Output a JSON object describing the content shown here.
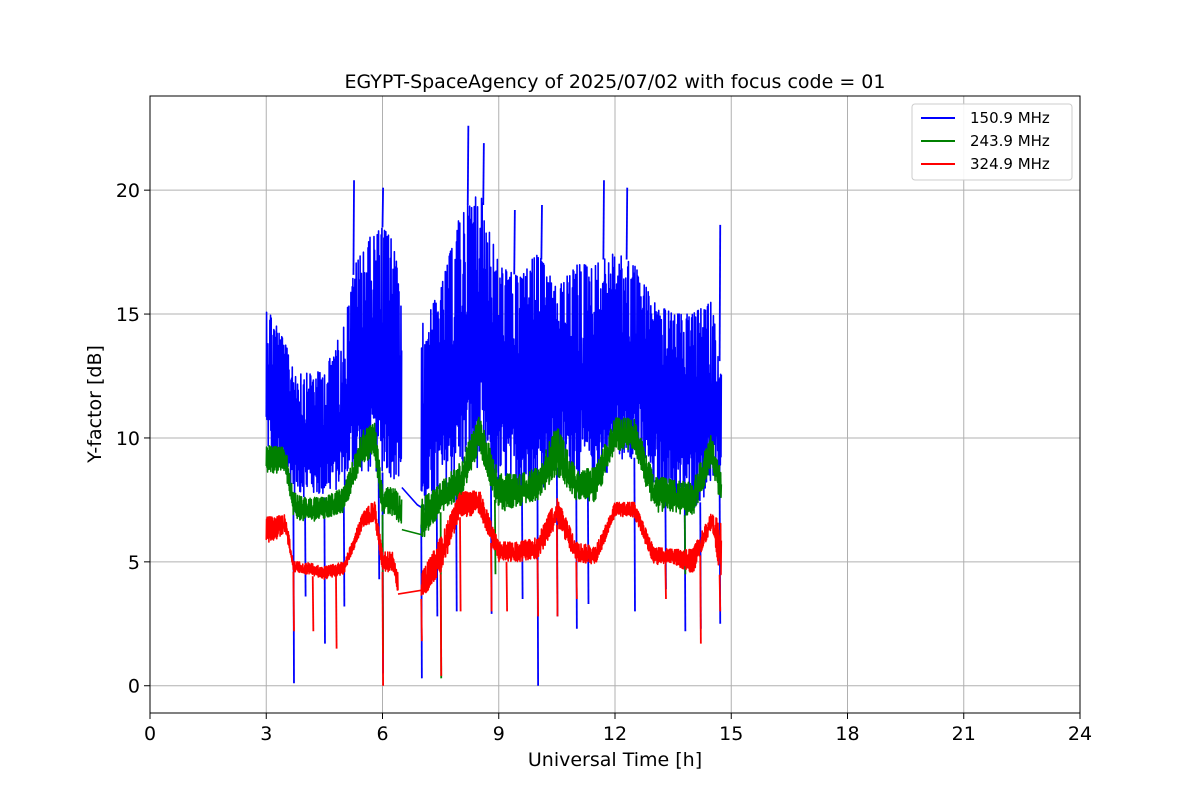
{
  "chart_data": {
    "type": "line",
    "title": "EGYPT-SpaceAgency of 2025/07/02 with focus code = 01",
    "xlabel": "Universal Time [h]",
    "ylabel": "Y-factor [dB]",
    "xlim": [
      0,
      24
    ],
    "ylim": [
      -1.1,
      23.8
    ],
    "xticks": [
      0,
      3,
      6,
      9,
      12,
      15,
      18,
      21,
      24
    ],
    "yticks": [
      0,
      5,
      10,
      15,
      20
    ],
    "grid": true,
    "legend_position": "top-right",
    "series": [
      {
        "name": "150.9 MHz",
        "color": "#0000ff",
        "segments": [
          {
            "x": [
              3.0,
              3.3,
              3.7,
              4.0,
              4.5,
              5.0,
              5.3,
              5.6,
              6.0,
              6.3,
              6.5
            ],
            "y_low": [
              9.5,
              8.5,
              7.8,
              7.6,
              7.6,
              8.0,
              8.6,
              8.5,
              8.6,
              8.3,
              8.3
            ],
            "y_high": [
              15.4,
              14.5,
              13.0,
              12.6,
              12.7,
              14.5,
              17.0,
              18.0,
              18.5,
              18.0,
              15.0
            ]
          },
          {
            "x": [
              7.0,
              7.5,
              8.0,
              8.5,
              9.0,
              9.5,
              10.0,
              10.5,
              11.0,
              11.5,
              12.0,
              12.5,
              13.0,
              13.5,
              14.0,
              14.5,
              14.75
            ],
            "y_low": [
              6.5,
              7.5,
              8.6,
              8.8,
              7.8,
              7.6,
              7.6,
              8.8,
              8.2,
              8.0,
              9.0,
              9.2,
              7.8,
              7.5,
              7.0,
              8.0,
              8.2
            ],
            "y_high": [
              14.5,
              16.0,
              19.0,
              20.0,
              17.0,
              16.5,
              17.5,
              16.0,
              17.0,
              17.0,
              17.5,
              17.0,
              15.5,
              15.0,
              15.0,
              15.5,
              12.5
            ]
          }
        ],
        "spikes": [
          [
            3.7,
            0.1
          ],
          [
            4.0,
            3.6
          ],
          [
            4.5,
            1.7
          ],
          [
            5.0,
            3.2
          ],
          [
            5.9,
            4.3
          ],
          [
            6.0,
            0.5
          ],
          [
            7.0,
            0.3
          ],
          [
            7.4,
            2.8
          ],
          [
            7.9,
            3.0
          ],
          [
            8.8,
            2.9
          ],
          [
            9.6,
            3.5
          ],
          [
            10.0,
            0.0
          ],
          [
            10.5,
            2.8
          ],
          [
            11.0,
            2.3
          ],
          [
            11.3,
            3.3
          ],
          [
            12.5,
            3.0
          ],
          [
            13.3,
            3.9
          ],
          [
            13.8,
            2.2
          ],
          [
            14.2,
            2.3
          ],
          [
            14.7,
            2.5
          ],
          [
            8.2,
            22.6
          ],
          [
            8.6,
            21.9
          ],
          [
            5.25,
            20.4
          ],
          [
            6.0,
            20.1
          ],
          [
            11.7,
            20.4
          ],
          [
            12.3,
            20.1
          ],
          [
            9.4,
            19.2
          ],
          [
            10.1,
            19.4
          ],
          [
            14.7,
            18.6
          ]
        ],
        "bridge": [
          [
            6.5,
            8.0
          ],
          [
            6.9,
            7.3
          ],
          [
            7.1,
            7.1
          ]
        ]
      },
      {
        "name": "243.9 MHz",
        "color": "#008000",
        "segments": [
          {
            "x": [
              3.0,
              3.5,
              3.7,
              4.0,
              4.5,
              5.0,
              5.5,
              5.8,
              6.0,
              6.3,
              6.5
            ],
            "y_low": [
              8.6,
              8.5,
              6.8,
              6.6,
              6.7,
              7.0,
              9.0,
              9.2,
              6.9,
              6.8,
              6.4
            ],
            "y_high": [
              9.7,
              9.6,
              7.8,
              7.6,
              7.6,
              8.0,
              10.3,
              10.6,
              8.0,
              8.0,
              7.5
            ]
          },
          {
            "x": [
              7.0,
              7.5,
              8.0,
              8.5,
              9.0,
              9.5,
              10.0,
              10.5,
              11.0,
              11.5,
              12.0,
              12.5,
              13.0,
              13.5,
              14.0,
              14.5,
              14.75
            ],
            "y_low": [
              5.8,
              7.0,
              7.5,
              9.5,
              7.0,
              7.2,
              7.5,
              8.5,
              7.5,
              7.4,
              9.5,
              9.5,
              7.0,
              7.0,
              6.8,
              8.8,
              7.2
            ],
            "y_high": [
              7.5,
              8.2,
              9.0,
              10.9,
              8.6,
              8.5,
              8.8,
              10.5,
              8.7,
              8.8,
              10.8,
              10.8,
              8.5,
              8.3,
              8.2,
              10.2,
              8.5
            ]
          }
        ],
        "spikes": [
          [
            7.5,
            0.3
          ],
          [
            6.0,
            1.3
          ],
          [
            8.9,
            4.5
          ],
          [
            13.8,
            4.5
          ]
        ],
        "bridge": [
          [
            6.5,
            6.3
          ],
          [
            7.0,
            6.1
          ]
        ]
      },
      {
        "name": "324.9 MHz",
        "color": "#ff0000",
        "segments": [
          {
            "x": [
              3.0,
              3.5,
              3.7,
              4.0,
              4.5,
              5.0,
              5.5,
              5.8,
              6.0,
              6.3,
              6.4
            ],
            "y_low": [
              5.6,
              6.2,
              4.6,
              4.5,
              4.3,
              4.5,
              6.4,
              6.5,
              4.6,
              4.6,
              3.7
            ],
            "y_high": [
              6.8,
              6.9,
              5.0,
              5.0,
              4.8,
              5.0,
              7.0,
              7.5,
              5.4,
              5.4,
              4.5
            ]
          },
          {
            "x": [
              7.0,
              7.5,
              8.0,
              8.5,
              9.0,
              9.5,
              10.0,
              10.5,
              11.0,
              11.5,
              12.0,
              12.5,
              13.0,
              13.5,
              14.0,
              14.5,
              14.75
            ],
            "y_low": [
              3.5,
              4.5,
              6.8,
              6.9,
              5.0,
              5.0,
              5.1,
              6.5,
              5.0,
              4.9,
              6.8,
              6.8,
              4.9,
              4.9,
              4.5,
              6.4,
              4.0
            ],
            "y_high": [
              4.5,
              6.0,
              7.8,
              7.9,
              5.8,
              5.8,
              6.0,
              7.6,
              5.8,
              5.6,
              7.4,
              7.4,
              5.6,
              5.5,
              5.5,
              7.0,
              6.5
            ]
          }
        ],
        "spikes": [
          [
            3.7,
            2.2
          ],
          [
            4.2,
            2.2
          ],
          [
            4.8,
            1.5
          ],
          [
            6.0,
            0.0
          ],
          [
            7.0,
            1.8
          ],
          [
            7.5,
            0.4
          ],
          [
            8.0,
            3.0
          ],
          [
            8.8,
            3.0
          ],
          [
            9.2,
            3.0
          ],
          [
            10.0,
            2.8
          ],
          [
            10.5,
            2.8
          ],
          [
            11.0,
            3.5
          ],
          [
            13.3,
            3.5
          ],
          [
            14.2,
            1.7
          ],
          [
            14.7,
            3.0
          ]
        ],
        "bridge": [
          [
            6.4,
            3.7
          ],
          [
            7.2,
            3.9
          ]
        ]
      }
    ]
  }
}
